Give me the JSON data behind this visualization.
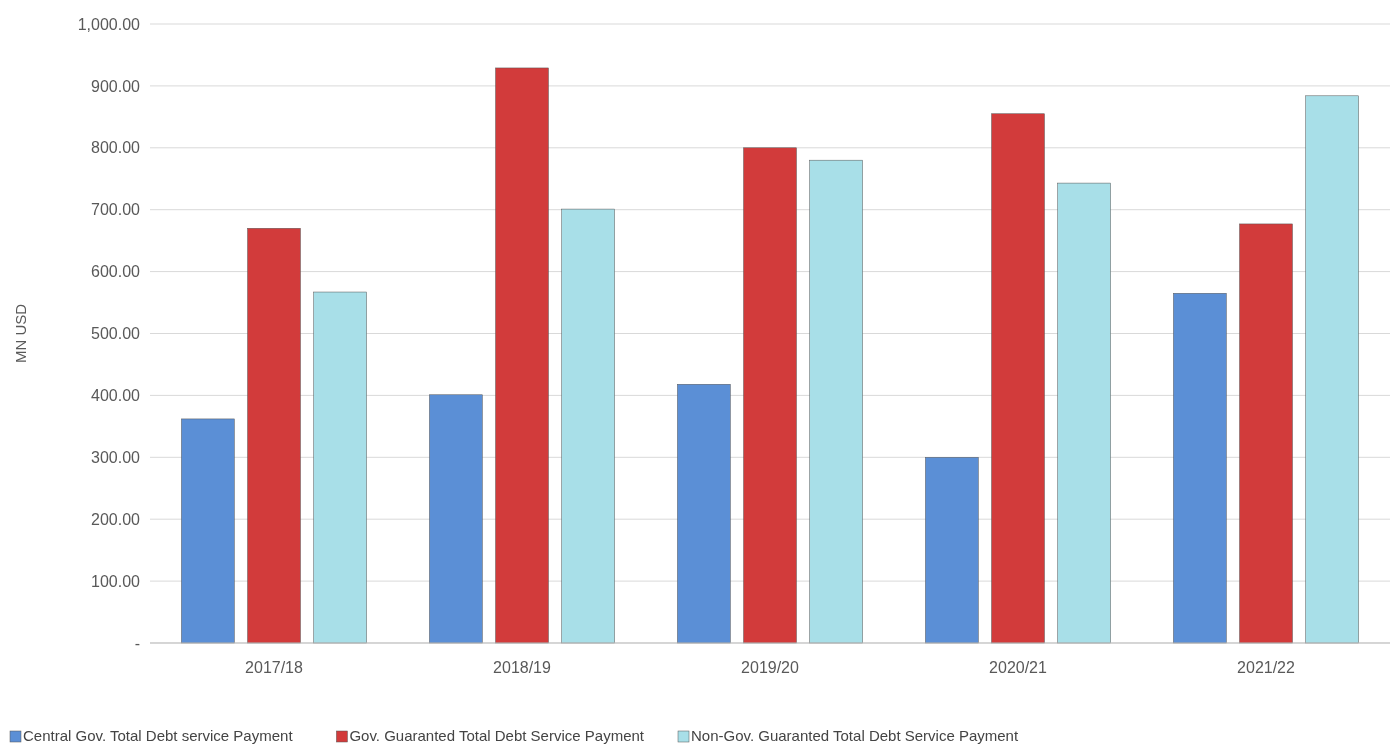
{
  "chart_data": {
    "type": "bar",
    "ylabel": "MN USD",
    "categories": [
      "2017/18",
      "2018/19",
      "2019/20",
      "2020/21",
      "2021/22"
    ],
    "series": [
      {
        "name": "Central Gov. Total Debt service Payment",
        "color": "#5b8fd6",
        "values": [
          362,
          401,
          418,
          300,
          565
        ]
      },
      {
        "name": "Gov. Guaranted Total Debt Service Payment",
        "color": "#d23b3b",
        "values": [
          670,
          929,
          800,
          855,
          677
        ]
      },
      {
        "name": "Non-Gov. Guaranted Total Debt Service Payment",
        "color": "#a8dfe8",
        "values": [
          567,
          701,
          780,
          743,
          884
        ]
      }
    ],
    "ylim": [
      0,
      1000
    ],
    "yticks": [
      {
        "value": 0,
        "label": "-"
      },
      {
        "value": 100,
        "label": "100.00"
      },
      {
        "value": 200,
        "label": "200.00"
      },
      {
        "value": 300,
        "label": "300.00"
      },
      {
        "value": 400,
        "label": "400.00"
      },
      {
        "value": 500,
        "label": "500.00"
      },
      {
        "value": 600,
        "label": "600.00"
      },
      {
        "value": 700,
        "label": "700.00"
      },
      {
        "value": 800,
        "label": "800.00"
      },
      {
        "value": 900,
        "label": "900.00"
      },
      {
        "value": 1000,
        "label": "1,000.00"
      }
    ],
    "grid": "y",
    "legend": "bottom"
  }
}
